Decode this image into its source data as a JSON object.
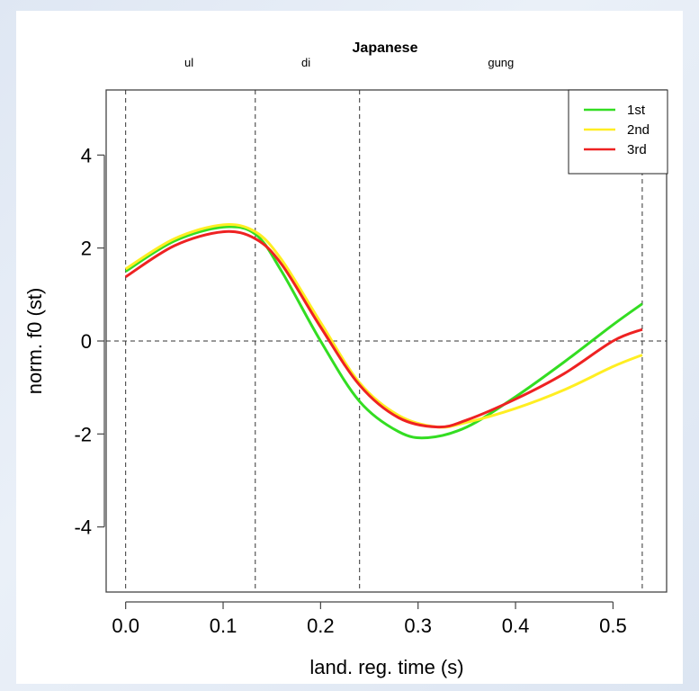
{
  "chart_data": {
    "type": "line",
    "title": "Japanese",
    "xlabel": "land. reg. time (s)",
    "ylabel": "norm. f0 (st)",
    "xlim": [
      -0.02,
      0.555
    ],
    "ylim": [
      -5.4,
      5.4
    ],
    "xticks": [
      0.0,
      0.1,
      0.2,
      0.3,
      0.4,
      0.5
    ],
    "xtick_labels": [
      "0.0",
      "0.1",
      "0.2",
      "0.3",
      "0.4",
      "0.5"
    ],
    "yticks": [
      -4,
      -2,
      0,
      2,
      4
    ],
    "ytick_labels": [
      "-4",
      "-2",
      "0",
      "2",
      "4"
    ],
    "vlines": [
      0.0,
      0.133,
      0.24,
      0.53
    ],
    "hline": 0,
    "segments": [
      {
        "label": "ul",
        "x": 0.065
      },
      {
        "label": "di",
        "x": 0.185
      },
      {
        "label": "gung",
        "x": 0.385
      }
    ],
    "legend_position": "top-right",
    "series": [
      {
        "name": "1st",
        "color": "#33dd22",
        "x": [
          0.0,
          0.05,
          0.1,
          0.133,
          0.16,
          0.2,
          0.24,
          0.28,
          0.31,
          0.35,
          0.4,
          0.45,
          0.5,
          0.53
        ],
        "y": [
          1.5,
          2.15,
          2.45,
          2.3,
          1.5,
          0.0,
          -1.3,
          -1.95,
          -2.08,
          -1.85,
          -1.2,
          -0.45,
          0.35,
          0.8
        ]
      },
      {
        "name": "2nd",
        "color": "#ffee22",
        "x": [
          0.0,
          0.05,
          0.1,
          0.133,
          0.16,
          0.2,
          0.24,
          0.28,
          0.32,
          0.35,
          0.4,
          0.45,
          0.5,
          0.53
        ],
        "y": [
          1.55,
          2.2,
          2.5,
          2.35,
          1.75,
          0.4,
          -0.9,
          -1.6,
          -1.85,
          -1.75,
          -1.45,
          -1.05,
          -0.55,
          -0.3
        ]
      },
      {
        "name": "3rd",
        "color": "#ee2222",
        "x": [
          0.0,
          0.05,
          0.1,
          0.133,
          0.16,
          0.2,
          0.24,
          0.28,
          0.32,
          0.35,
          0.4,
          0.45,
          0.5,
          0.53
        ],
        "y": [
          1.38,
          2.05,
          2.35,
          2.2,
          1.65,
          0.3,
          -0.95,
          -1.65,
          -1.85,
          -1.7,
          -1.25,
          -0.7,
          0.0,
          0.25
        ]
      }
    ]
  }
}
